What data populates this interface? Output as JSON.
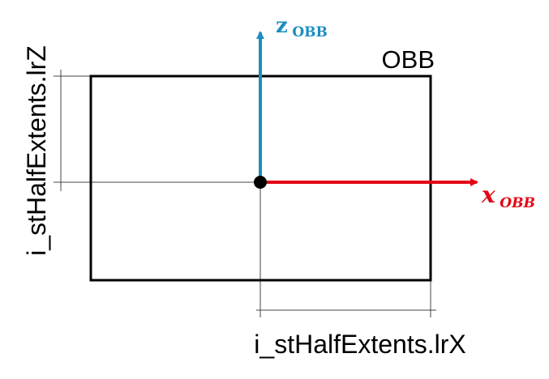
{
  "diagram": {
    "box_label": "OBB",
    "x_label_main": "x",
    "x_label_sub": "OBB",
    "z_label_main": "z",
    "z_label_sub": "OBB",
    "width_dimension_label": "i_stHalfExtents.lrX",
    "height_dimension_label": "i_stHalfExtents.lrZ"
  },
  "colors": {
    "x_axis": "#e30613",
    "z_axis": "#1b8ec3",
    "box_stroke": "#000000",
    "dimension_lines": "#444444",
    "text": "#000000"
  }
}
